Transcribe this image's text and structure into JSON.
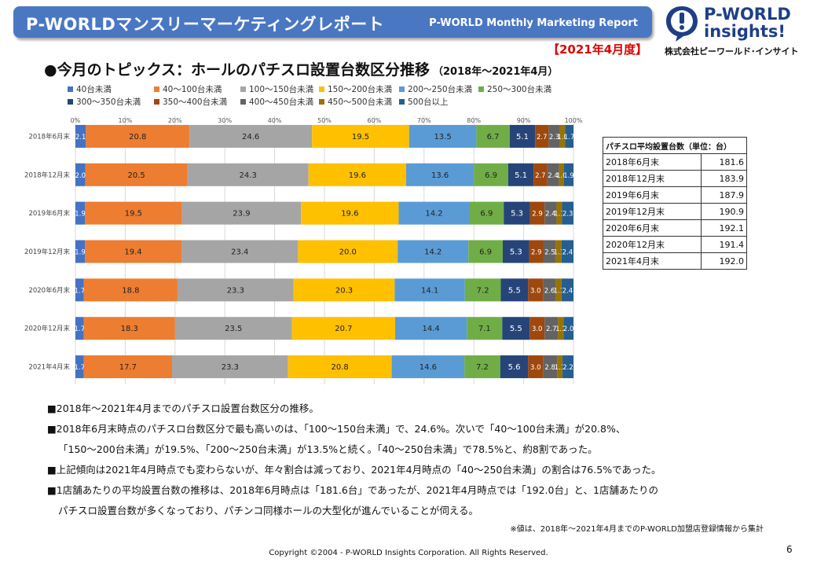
{
  "header": {
    "title_jp": "P-WORLDマンスリーマーケティングレポート",
    "title_en": "P-WORLD Monthly Marketing Report",
    "period": "【2021年4月度】"
  },
  "logo": {
    "line1": "P-WORLD",
    "line2": "insights!",
    "company": "株式会社ピーワールド･インサイト"
  },
  "topic": {
    "title": "●今月のトピックス：ホールのパチスロ設置台数区分推移",
    "subtitle": "（2018年～2021年4月）"
  },
  "chart_data": {
    "type": "bar",
    "orientation": "horizontal",
    "stacked": "percent",
    "categories": [
      "2018年6月末",
      "2018年12月末",
      "2019年6月末",
      "2019年12月末",
      "2020年6月末",
      "2020年12月末",
      "2021年4月末"
    ],
    "x_ticks": [
      "0%",
      "10%",
      "20%",
      "30%",
      "40%",
      "50%",
      "60%",
      "70%",
      "80%",
      "90%",
      "100%"
    ],
    "xlim": [
      0,
      100
    ],
    "legend_position": "top",
    "series": [
      {
        "name": "40台未満",
        "color": "#4472c4",
        "values": [
          2.1,
          2.0,
          1.9,
          1.9,
          1.7,
          1.7,
          1.7
        ]
      },
      {
        "name": "40～100台未満",
        "color": "#ed7d31",
        "values": [
          20.8,
          20.5,
          19.5,
          19.4,
          18.8,
          18.3,
          17.7
        ]
      },
      {
        "name": "100～150台未満",
        "color": "#a5a5a5",
        "values": [
          24.6,
          24.3,
          23.9,
          23.4,
          23.3,
          23.5,
          23.3
        ]
      },
      {
        "name": "150～200台未満",
        "color": "#ffc000",
        "values": [
          19.5,
          19.6,
          19.6,
          20.0,
          20.3,
          20.7,
          20.8
        ]
      },
      {
        "name": "200～250台未満",
        "color": "#5b9bd5",
        "values": [
          13.5,
          13.6,
          14.2,
          14.2,
          14.1,
          14.4,
          14.6
        ]
      },
      {
        "name": "250～300台未満",
        "color": "#70ad47",
        "values": [
          6.7,
          6.9,
          6.9,
          6.9,
          7.2,
          7.1,
          7.2
        ]
      },
      {
        "name": "300～350台未満",
        "color": "#264478",
        "values": [
          5.1,
          5.1,
          5.3,
          5.3,
          5.5,
          5.5,
          5.6
        ]
      },
      {
        "name": "350～400台未満",
        "color": "#9e480e",
        "values": [
          2.7,
          2.7,
          2.9,
          2.9,
          3.0,
          3.0,
          3.0
        ]
      },
      {
        "name": "400～450台未満",
        "color": "#636363",
        "values": [
          2.3,
          2.4,
          2.4,
          2.5,
          2.6,
          2.7,
          2.8
        ]
      },
      {
        "name": "450～500台未満",
        "color": "#997300",
        "values": [
          1.0,
          1.0,
          1.1,
          1.1,
          1.1,
          1.1,
          1.1
        ]
      },
      {
        "name": "500台以上",
        "color": "#255e91",
        "values": [
          1.7,
          1.9,
          2.3,
          2.4,
          2.4,
          2.0,
          2.2
        ]
      }
    ]
  },
  "avg_table": {
    "header": "パチスロ平均設置台数（単位：台）",
    "rows": [
      {
        "label": "2018年6月末",
        "value": "181.6"
      },
      {
        "label": "2018年12月末",
        "value": "183.9"
      },
      {
        "label": "2019年6月末",
        "value": "187.9"
      },
      {
        "label": "2019年12月末",
        "value": "190.9"
      },
      {
        "label": "2020年6月末",
        "value": "192.1"
      },
      {
        "label": "2020年12月末",
        "value": "191.4"
      },
      {
        "label": "2021年4月末",
        "value": "192.0"
      }
    ]
  },
  "notes": [
    "■2018年～2021年4月までのパチスロ設置台数区分の推移。",
    "■2018年6月末時点のパチスロ台数区分で最も高いのは、「100～150台未満」で、24.6%。次いで「40～100台未満」が20.8%、",
    "「150～200台未満」が19.5%、「200～250台未満」が13.5%と続く。「40～250台未満」で78.5%と、約8割であった。",
    "■上記傾向は2021年4月時点でも変わらないが、年々割合は減っており、2021年4月時点の「40～250台未満」の割合は76.5%であった。",
    "■1店舗あたりの平均設置台数の推移は、2018年6月時点は「181.6台」であったが、2021年4月時点では「192.0台」と、1店舗あたりの",
    "パチスロ設置台数が多くなっており、パチンコ同様ホールの大型化が進んでいることが伺える。"
  ],
  "source_note": "※値は、2018年～2021年4月までのP-WORLD加盟店登録情報から集計",
  "footer": {
    "copyright": "Copyright ©2004 -  P-WORLD Insights Corporation. All Rights Reserved.",
    "page": "6"
  }
}
